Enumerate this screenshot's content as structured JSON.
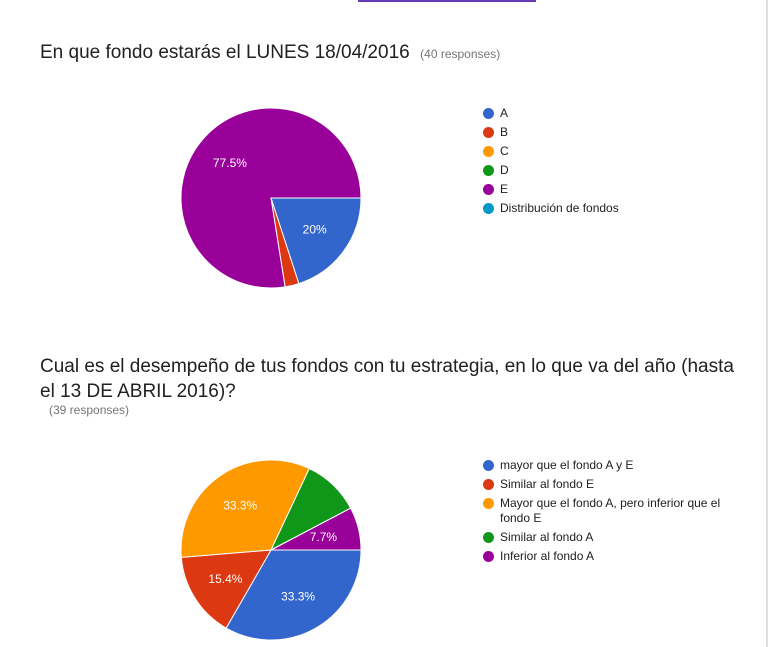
{
  "questions": [
    {
      "title": "En que fondo estarás el LUNES 18/04/2016",
      "responses": "(40 responses)"
    },
    {
      "title": "Cual es el desempeño de tus fondos con tu estrategia, en lo que va del año (hasta el 13 DE ABRIL 2016)?",
      "responses": "(39 responses)"
    }
  ],
  "chart_data": [
    {
      "type": "pie",
      "title": "En que fondo estarás el LUNES 18/04/2016",
      "legend_position": "right",
      "slices": [
        {
          "label": "A",
          "value": 20,
          "color": "#3366cc",
          "data_label": "20%"
        },
        {
          "label": "B",
          "value": 2.5,
          "color": "#dc3912",
          "data_label": ""
        },
        {
          "label": "C",
          "value": 0,
          "color": "#ff9900",
          "data_label": ""
        },
        {
          "label": "D",
          "value": 0,
          "color": "#109618",
          "data_label": ""
        },
        {
          "label": "E",
          "value": 77.5,
          "color": "#990099",
          "data_label": "77.5%"
        },
        {
          "label": "Distribución de fondos",
          "value": 0,
          "color": "#0099c6",
          "data_label": ""
        }
      ]
    },
    {
      "type": "pie",
      "title": "Cual es el desempeño de tus fondos con tu estrategia, en lo que va del año (hasta el 13 DE ABRIL 2016)?",
      "legend_position": "right",
      "slices": [
        {
          "label": "mayor que el fondo A y E",
          "value": 33.3,
          "color": "#3366cc",
          "data_label": "33.3%"
        },
        {
          "label": "Similar al fondo E",
          "value": 15.4,
          "color": "#dc3912",
          "data_label": "15.4%"
        },
        {
          "label": "Mayor que el fondo A, pero inferior que el fondo E",
          "value": 33.3,
          "color": "#ff9900",
          "data_label": "33.3%"
        },
        {
          "label": "Similar al fondo A",
          "value": 10.3,
          "color": "#109618",
          "data_label": ""
        },
        {
          "label": "Inferior al fondo A",
          "value": 7.7,
          "color": "#990099",
          "data_label": "7.7%"
        }
      ]
    }
  ]
}
